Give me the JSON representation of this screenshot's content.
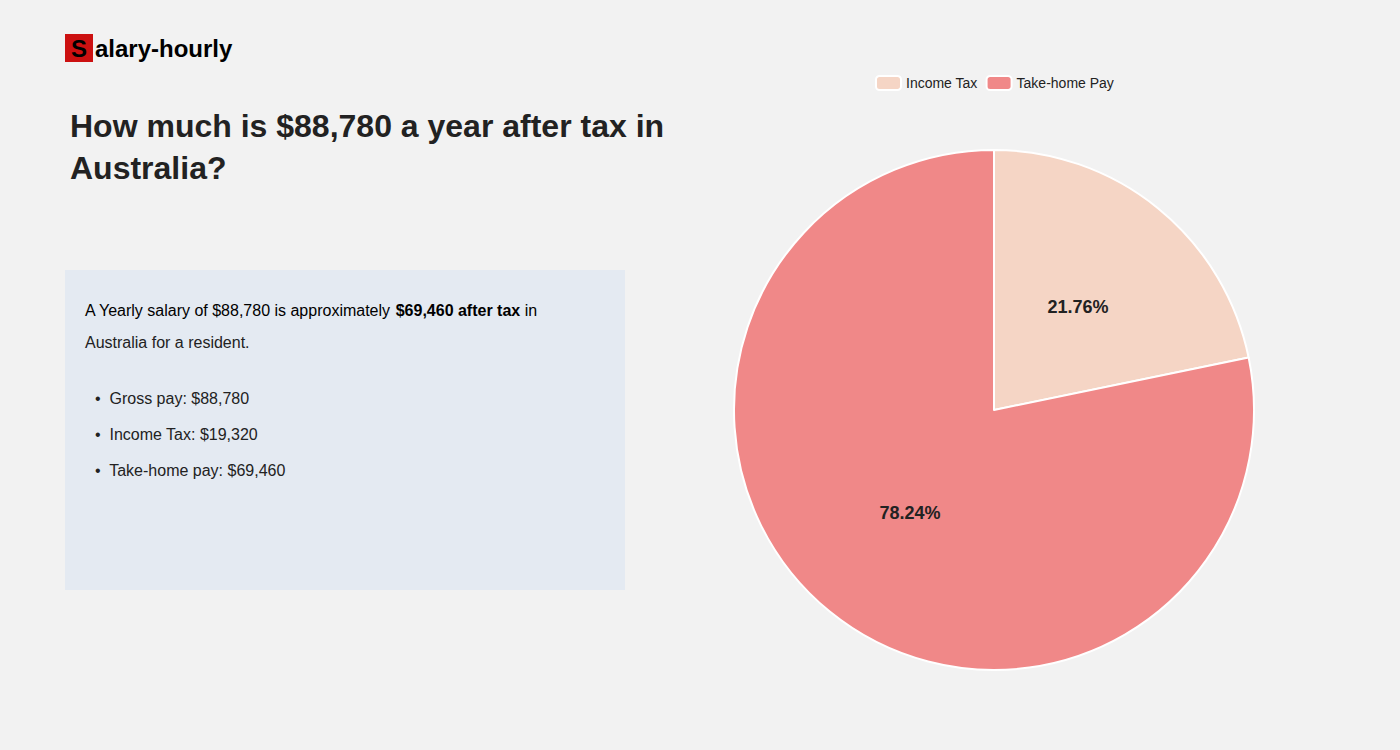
{
  "chart_data": {
    "type": "pie",
    "title": "How much is $88,780 a year after tax in\nAustralia?",
    "categories": [
      "Income Tax",
      "Take-home Pay"
    ],
    "values": [
      21.76,
      78.24
    ],
    "value_labels": [
      "21.76%",
      "78.24%"
    ],
    "colors": [
      "#f5d5c5",
      "#f08888"
    ],
    "data_labels": true,
    "legend": "top",
    "annotations": [
      {
        "text": "Salary-hourly",
        "color": "#cc1111"
      },
      {
        "text": "A Yearly salary of $88,780 is approximately "
      },
      {
        "text": "$69,460 after tax",
        "color": "#cc1111"
      },
      {
        "text": " in"
      },
      {
        "text": "Australia for a resident."
      },
      {
        "text": "•  Gross pay: $88,780"
      },
      {
        "text": "•  Income Tax: $19,320"
      },
      {
        "text": "•  Take-home pay: $69,460"
      }
    ]
  }
}
